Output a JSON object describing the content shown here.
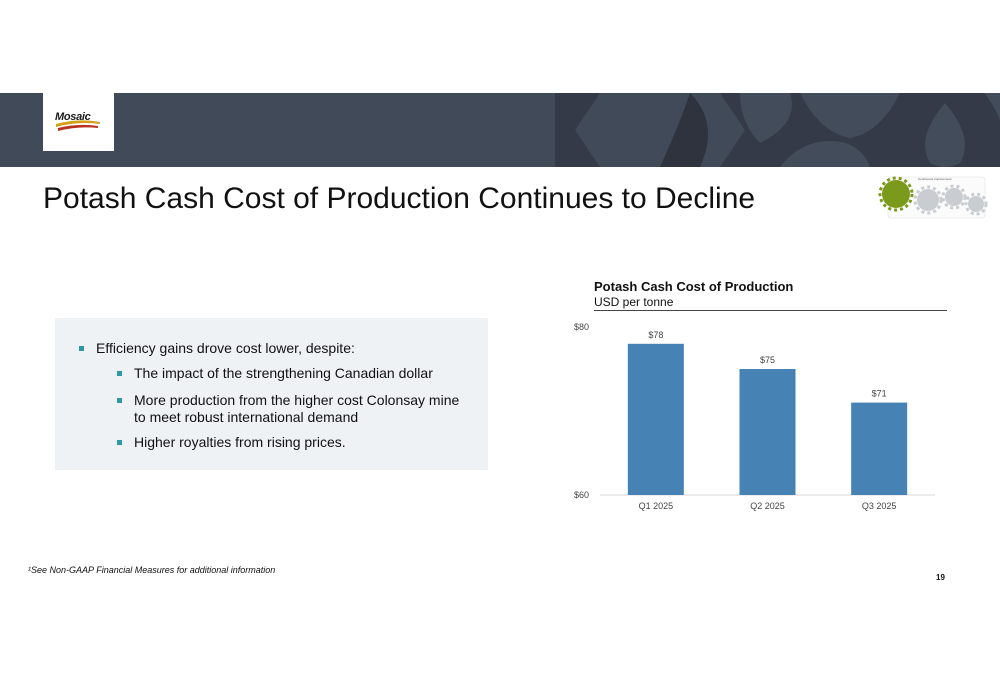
{
  "brand": {
    "logo_text": "Mosaic",
    "colors": {
      "band": "#414a58",
      "band_dark": "#343a47",
      "bar": "#4682b4",
      "bullet": "#2b9aa3",
      "panel": "#eef2f5"
    }
  },
  "slide": {
    "title": "Potash Cash Cost of Production Continues to Decline",
    "page_number": "19",
    "footnote": "¹See Non-GAAP Financial Measures for additional information"
  },
  "bullets": {
    "main": "Efficiency gains drove cost lower, despite:",
    "sub": [
      "The impact of the strengthening Canadian dollar",
      "More production from the higher cost Colonsay mine to meet robust international demand",
      "Higher royalties from rising prices."
    ]
  },
  "gears_icon": {
    "name": "gears-icon",
    "caption": "Continuous Improvement"
  },
  "chart_data": {
    "type": "bar",
    "title": "Potash Cash Cost of Production",
    "subtitle": "USD per tonne",
    "categories": [
      "Q1 2025",
      "Q2 2025",
      "Q3 2025"
    ],
    "values": [
      78,
      75,
      71
    ],
    "value_labels": [
      "$78",
      "$75",
      "$71"
    ],
    "y_tick_labels": [
      "$60",
      "$80"
    ],
    "ylim": [
      60,
      80
    ],
    "grid": false,
    "legend": "none"
  }
}
